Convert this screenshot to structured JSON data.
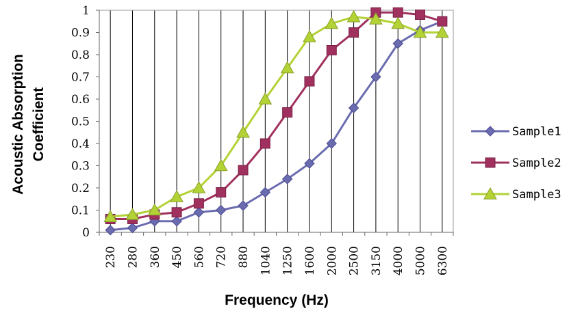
{
  "chart_data": {
    "type": "line",
    "x": [
      "230",
      "280",
      "360",
      "450",
      "560",
      "720",
      "880",
      "1040",
      "1250",
      "1600",
      "2000",
      "2500",
      "3150",
      "4000",
      "5000",
      "6300"
    ],
    "ylabel": [
      "Acoustic Absorption",
      "Coefficient"
    ],
    "xlabel": "Frequency (Hz)",
    "ylim": [
      0,
      1
    ],
    "yticks": [
      "0",
      "0.1",
      "0.2",
      "0.3",
      "0.4",
      "0.5",
      "0.6",
      "0.7",
      "0.8",
      "0.9",
      "1"
    ],
    "grid": "vertical",
    "legend_position": "right",
    "series": [
      {
        "name": "Sample1",
        "color": "#6b6bb0",
        "marker": "diamond",
        "values": [
          0.01,
          0.02,
          0.05,
          0.05,
          0.09,
          0.1,
          0.12,
          0.18,
          0.24,
          0.31,
          0.4,
          0.56,
          0.7,
          0.85,
          0.91,
          0.95
        ]
      },
      {
        "name": "Sample2",
        "color": "#a0305e",
        "marker": "square",
        "values": [
          0.06,
          0.06,
          0.08,
          0.09,
          0.13,
          0.18,
          0.28,
          0.4,
          0.54,
          0.68,
          0.82,
          0.9,
          0.99,
          0.99,
          0.98,
          0.95
        ]
      },
      {
        "name": "Sample3",
        "color": "#b2d235",
        "marker": "triangle",
        "values": [
          0.07,
          0.08,
          0.1,
          0.16,
          0.2,
          0.3,
          0.45,
          0.6,
          0.74,
          0.88,
          0.94,
          0.97,
          0.96,
          0.94,
          0.9,
          0.9
        ]
      }
    ]
  }
}
